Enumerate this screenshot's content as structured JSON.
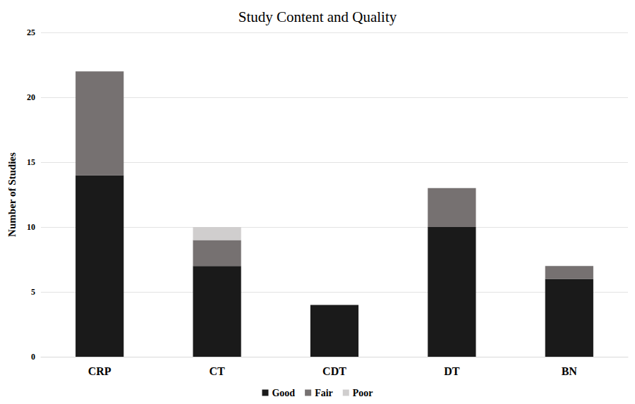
{
  "chart_data": {
    "type": "bar",
    "title": "Study Content and Quality",
    "y_label": "Number of Studies",
    "categories": [
      "CRP",
      "CT",
      "CDT",
      "DT",
      "BN"
    ],
    "series": [
      {
        "name": "Good",
        "color": "#1a1a1a",
        "values": [
          14,
          7,
          4,
          10,
          6
        ]
      },
      {
        "name": "Fair",
        "color": "#767171",
        "values": [
          8,
          2,
          0,
          3,
          1
        ]
      },
      {
        "name": "Poor",
        "color": "#d0cece",
        "values": [
          0,
          1,
          0,
          0,
          0
        ]
      }
    ],
    "stacked": true,
    "ylim": [
      0,
      25
    ],
    "yticks": [
      0,
      5,
      10,
      15,
      20,
      25
    ],
    "grid": true,
    "legend": "bottom"
  }
}
